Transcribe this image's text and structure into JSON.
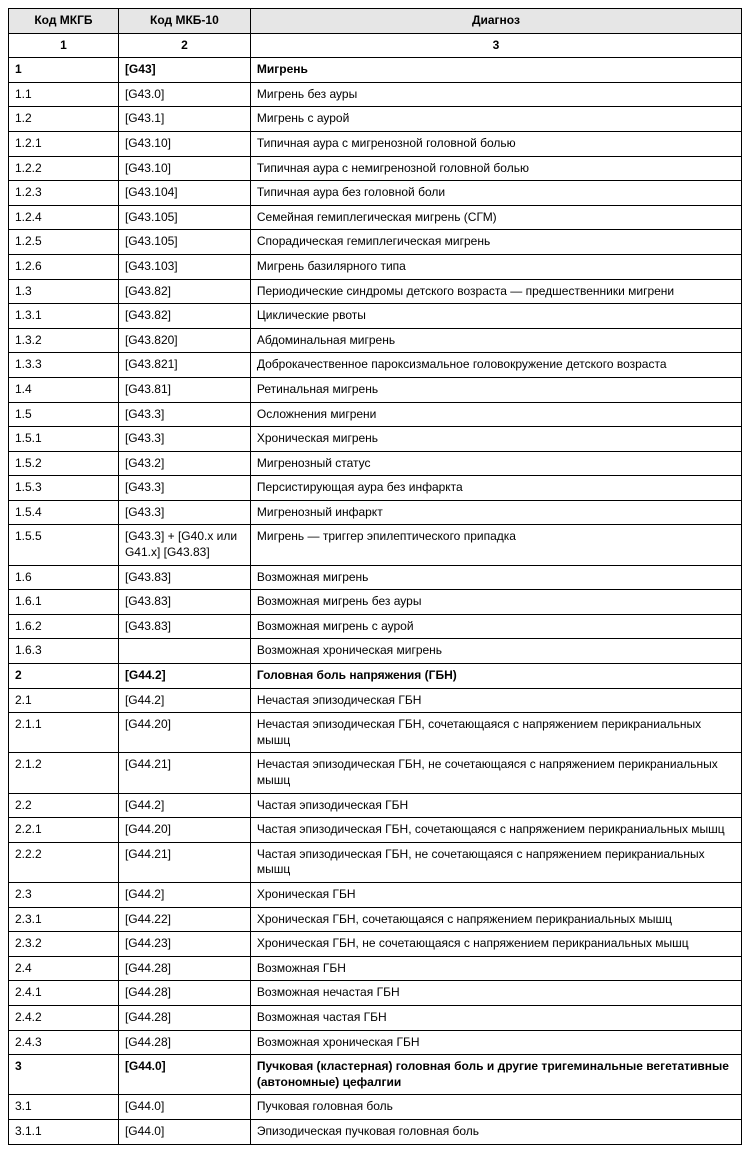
{
  "table": {
    "header_bg": "#e6e6e6",
    "border_color": "#000000",
    "font_size_pt": 9,
    "columns": [
      {
        "label": "Код МКГБ",
        "sub": "1",
        "width_pct": 15
      },
      {
        "label": "Код МКБ-10",
        "sub": "2",
        "width_pct": 18
      },
      {
        "label": "Диагноз",
        "sub": "3",
        "width_pct": 67
      }
    ],
    "rows": [
      {
        "mkgb": "1",
        "mkb10": "[G43]",
        "diag": "Мигрень",
        "bold": true
      },
      {
        "mkgb": "1.1",
        "mkb10": "[G43.0]",
        "diag": "Мигрень без ауры"
      },
      {
        "mkgb": "1.2",
        "mkb10": "[G43.1]",
        "diag": "Мигрень с аурой"
      },
      {
        "mkgb": "1.2.1",
        "mkb10": "[G43.10]",
        "diag": "Типичная аура с мигренозной головной болью"
      },
      {
        "mkgb": "1.2.2",
        "mkb10": "[G43.10]",
        "diag": "Типичная аура с немигренозной головной болью"
      },
      {
        "mkgb": "1.2.3",
        "mkb10": "[G43.104]",
        "diag": "Типичная аура без головной боли"
      },
      {
        "mkgb": "1.2.4",
        "mkb10": "[G43.105]",
        "diag": "Семейная гемиплегическая мигрень (СГМ)"
      },
      {
        "mkgb": "1.2.5",
        "mkb10": "[G43.105]",
        "diag": "Спорадическая гемиплегическая мигрень"
      },
      {
        "mkgb": "1.2.6",
        "mkb10": "[G43.103]",
        "diag": "Мигрень базилярного типа"
      },
      {
        "mkgb": "1.3",
        "mkb10": "[G43.82]",
        "diag": "Периодические синдромы детского возраста — предшественники мигрени"
      },
      {
        "mkgb": "1.3.1",
        "mkb10": "[G43.82]",
        "diag": "Циклические рвоты"
      },
      {
        "mkgb": "1.3.2",
        "mkb10": "[G43.820]",
        "diag": "Абдоминальная мигрень"
      },
      {
        "mkgb": "1.3.3",
        "mkb10": "[G43.821]",
        "diag": "Доброкачественное пароксизмальное головокружение детского возраста"
      },
      {
        "mkgb": "1.4",
        "mkb10": "[G43.81]",
        "diag": "Ретинальная мигрень"
      },
      {
        "mkgb": "1.5",
        "mkb10": "[G43.3]",
        "diag": "Осложнения мигрени"
      },
      {
        "mkgb": "1.5.1",
        "mkb10": "[G43.3]",
        "diag": "Хроническая мигрень"
      },
      {
        "mkgb": "1.5.2",
        "mkb10": "[G43.2]",
        "diag": "Мигренозный статус"
      },
      {
        "mkgb": "1.5.3",
        "mkb10": "[G43.3]",
        "diag": "Персистирующая аура без инфаркта"
      },
      {
        "mkgb": "1.5.4",
        "mkb10": "[G43.3]",
        "diag": "Мигренозный инфаркт"
      },
      {
        "mkgb": "1.5.5",
        "mkb10": "[G43.3] + [G40.x или G41.x] [G43.83]",
        "diag": "Мигрень — триггер эпилептического припадка"
      },
      {
        "mkgb": "1.6",
        "mkb10": "[G43.83]",
        "diag": "Возможная мигрень"
      },
      {
        "mkgb": "1.6.1",
        "mkb10": "[G43.83]",
        "diag": "Возможная мигрень без ауры"
      },
      {
        "mkgb": "1.6.2",
        "mkb10": "[G43.83]",
        "diag": "Возможная мигрень с аурой"
      },
      {
        "mkgb": "1.6.3",
        "mkb10": "",
        "diag": "Возможная хроническая мигрень"
      },
      {
        "mkgb": "2",
        "mkb10": "[G44.2]",
        "diag": "Головная боль напряжения (ГБН)",
        "bold": true
      },
      {
        "mkgb": "2.1",
        "mkb10": "[G44.2]",
        "diag": "Нечастая эпизодическая ГБН"
      },
      {
        "mkgb": "2.1.1",
        "mkb10": "[G44.20]",
        "diag": "Нечастая эпизодическая ГБН, сочетающаяся с напряжением перикраниальных мышц"
      },
      {
        "mkgb": "2.1.2",
        "mkb10": "[G44.21]",
        "diag": "Нечастая эпизодическая ГБН, не сочетающаяся с напряжением перикраниальных мышц"
      },
      {
        "mkgb": "2.2",
        "mkb10": "[G44.2]",
        "diag": "Частая эпизодическая ГБН"
      },
      {
        "mkgb": "2.2.1",
        "mkb10": "[G44.20]",
        "diag": "Частая эпизодическая ГБН, сочетающаяся с напряжением перикраниальных мышц"
      },
      {
        "mkgb": "2.2.2",
        "mkb10": "[G44.21]",
        "diag": "Частая эпизодическая ГБН, не сочетающаяся с напряжением перикраниальных мышц"
      },
      {
        "mkgb": "2.3",
        "mkb10": "[G44.2]",
        "diag": "Хроническая ГБН"
      },
      {
        "mkgb": "2.3.1",
        "mkb10": "[G44.22]",
        "diag": "Хроническая ГБН, сочетающаяся с напряжением перикраниальных мышц"
      },
      {
        "mkgb": "2.3.2",
        "mkb10": "[G44.23]",
        "diag": "Хроническая ГБН, не сочетающаяся с напряжением перикраниальных мышц"
      },
      {
        "mkgb": "2.4",
        "mkb10": "[G44.28]",
        "diag": "Возможная ГБН"
      },
      {
        "mkgb": "2.4.1",
        "mkb10": "[G44.28]",
        "diag": "Возможная нечастая ГБН"
      },
      {
        "mkgb": "2.4.2",
        "mkb10": "[G44.28]",
        "diag": "Возможная частая ГБН"
      },
      {
        "mkgb": "2.4.3",
        "mkb10": "[G44.28]",
        "diag": "Возможная хроническая ГБН"
      },
      {
        "mkgb": "3",
        "mkb10": "[G44.0]",
        "diag": "Пучковая (кластерная) головная боль и другие тригеминальные вегетативные (автономные) цефалгии",
        "bold": true
      },
      {
        "mkgb": "3.1",
        "mkb10": "[G44.0]",
        "diag": "Пучковая головная боль"
      },
      {
        "mkgb": "3.1.1",
        "mkb10": "[G44.0]",
        "diag": "Эпизодическая пучковая головная боль"
      }
    ]
  }
}
